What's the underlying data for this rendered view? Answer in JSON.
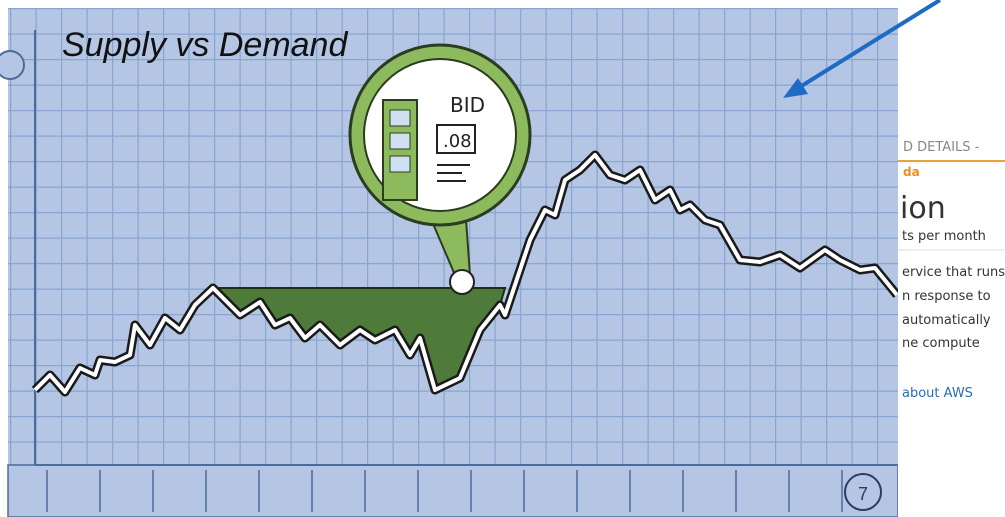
{
  "video": {
    "title": "Supply vs Demand",
    "bubble_label": "BID",
    "bubble_price": ".08",
    "clock_number": "7"
  },
  "side_panel": {
    "header": "D DETAILS -",
    "link_top": "da",
    "big_title": "ion",
    "subtitle": "ts per month",
    "lines": [
      "ervice that runs",
      "n response to",
      "automatically",
      "ne compute"
    ],
    "link_bottom": "about AWS"
  }
}
